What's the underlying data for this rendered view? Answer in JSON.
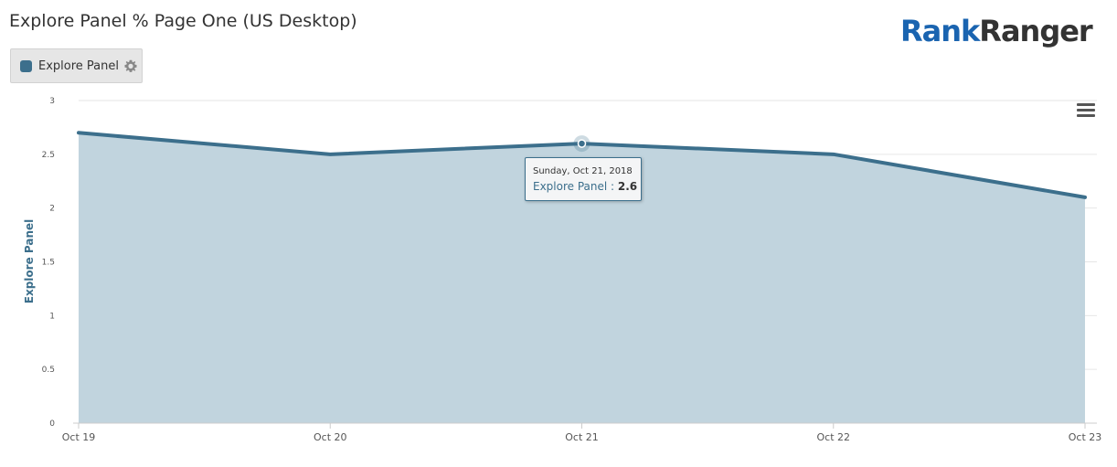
{
  "page": {
    "title": "Explore Panel % Page One (US Desktop)",
    "logo_part1": "Rank",
    "logo_part2": "Ranger"
  },
  "legend": {
    "label": "Explore Panel",
    "color": "#3c6f8c",
    "settings_icon": "gear-icon"
  },
  "menu_icon": "hamburger-menu-icon",
  "tooltip": {
    "date": "Sunday, Oct 21, 2018",
    "series": "Explore Panel",
    "separator": " : ",
    "value": "2.6"
  },
  "chart_data": {
    "type": "area",
    "title": "Explore Panel % Page One (US Desktop)",
    "categories": [
      "Oct 19",
      "Oct 20",
      "Oct 21",
      "Oct 22",
      "Oct 23"
    ],
    "series": [
      {
        "name": "Explore Panel",
        "values": [
          2.7,
          2.5,
          2.6,
          2.5,
          2.1
        ],
        "color": "#3c6f8c",
        "fill": "#c1d4de"
      }
    ],
    "ylabel": "Explore Panel",
    "xlabel": "",
    "ylim": [
      0,
      3
    ],
    "yticks": [
      0,
      0.5,
      1,
      1.5,
      2,
      2.5,
      3
    ],
    "ytick_labels": [
      "0",
      "0.5",
      "1",
      "1.5",
      "2",
      "2.5",
      "3"
    ],
    "grid": true,
    "highlighted_index": 2
  }
}
